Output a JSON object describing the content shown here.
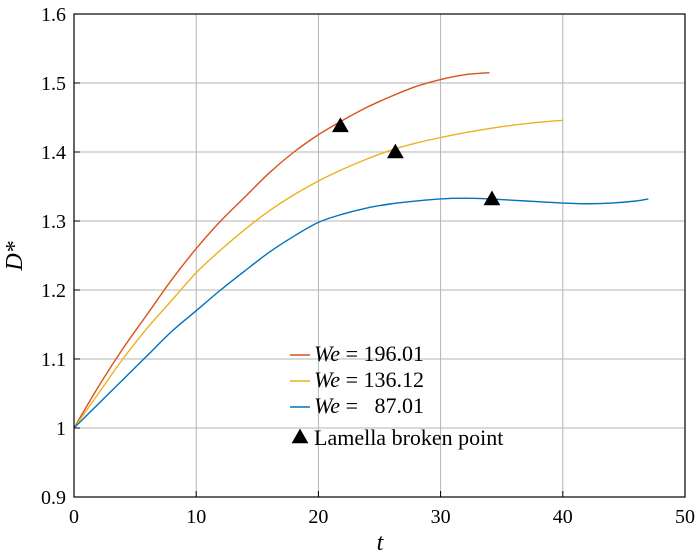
{
  "chart_data": {
    "type": "line",
    "title": "",
    "xlabel": "t",
    "ylabel": "D*",
    "xlim": [
      0,
      50
    ],
    "ylim": [
      0.9,
      1.6
    ],
    "xticks": [
      "0",
      "10",
      "20",
      "30",
      "40",
      "50"
    ],
    "yticks": [
      "0.9",
      "1",
      "1.1",
      "1.2",
      "1.3",
      "1.4",
      "1.5",
      "1.6"
    ],
    "grid": true,
    "legend_position": "lower-center",
    "series": [
      {
        "name": "We = 196.01",
        "name_var": "We",
        "name_value": "= 196.01",
        "color": "#d95319",
        "x": [
          0,
          2,
          4,
          6,
          8,
          10,
          12,
          14,
          16,
          18,
          20,
          22,
          24,
          26,
          28,
          30,
          32,
          34
        ],
        "y": [
          1.0,
          1.06,
          1.115,
          1.165,
          1.215,
          1.26,
          1.3,
          1.335,
          1.37,
          1.4,
          1.425,
          1.446,
          1.465,
          1.481,
          1.495,
          1.505,
          1.512,
          1.515
        ]
      },
      {
        "name": "We = 136.12",
        "name_var": "We",
        "name_value": "= 136.12",
        "color": "#edb120",
        "x": [
          0,
          2,
          4,
          6,
          8,
          10,
          12,
          14,
          16,
          18,
          20,
          22,
          24,
          26,
          28,
          30,
          32,
          34,
          36,
          38,
          40
        ],
        "y": [
          1.0,
          1.05,
          1.1,
          1.145,
          1.185,
          1.225,
          1.258,
          1.288,
          1.315,
          1.338,
          1.358,
          1.375,
          1.39,
          1.403,
          1.413,
          1.421,
          1.428,
          1.434,
          1.439,
          1.443,
          1.446
        ]
      },
      {
        "name": "We =   87.01",
        "name_var": "We",
        "name_value": "=   87.01",
        "color": "#0072bd",
        "x": [
          0,
          2,
          4,
          6,
          8,
          10,
          12,
          14,
          16,
          18,
          20,
          22,
          24,
          26,
          28,
          30,
          32,
          34,
          36,
          38,
          40,
          42,
          44,
          46,
          47
        ],
        "y": [
          1.0,
          1.035,
          1.07,
          1.105,
          1.14,
          1.17,
          1.2,
          1.228,
          1.255,
          1.278,
          1.298,
          1.31,
          1.319,
          1.325,
          1.329,
          1.332,
          1.333,
          1.332,
          1.33,
          1.328,
          1.326,
          1.325,
          1.326,
          1.329,
          1.332
        ]
      }
    ],
    "markers": {
      "name": "Lamella broken point",
      "symbol": "triangle",
      "points": [
        {
          "x": 21.8,
          "y": 1.438
        },
        {
          "x": 26.3,
          "y": 1.4
        },
        {
          "x": 34.2,
          "y": 1.332
        }
      ]
    }
  }
}
